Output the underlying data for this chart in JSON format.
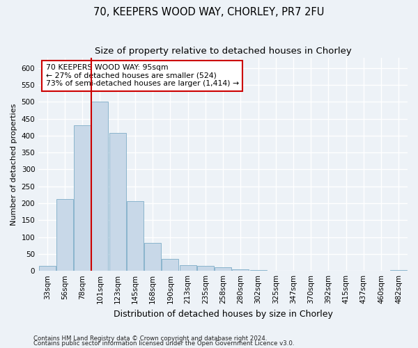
{
  "title1": "70, KEEPERS WOOD WAY, CHORLEY, PR7 2FU",
  "title2": "Size of property relative to detached houses in Chorley",
  "xlabel": "Distribution of detached houses by size in Chorley",
  "ylabel": "Number of detached properties",
  "footer1": "Contains HM Land Registry data © Crown copyright and database right 2024.",
  "footer2": "Contains public sector information licensed under the Open Government Licence v3.0.",
  "bar_labels": [
    "33sqm",
    "56sqm",
    "78sqm",
    "101sqm",
    "123sqm",
    "145sqm",
    "168sqm",
    "190sqm",
    "213sqm",
    "235sqm",
    "258sqm",
    "280sqm",
    "302sqm",
    "325sqm",
    "347sqm",
    "370sqm",
    "392sqm",
    "415sqm",
    "437sqm",
    "460sqm",
    "482sqm"
  ],
  "bar_values": [
    15,
    212,
    430,
    500,
    407,
    207,
    83,
    35,
    17,
    15,
    10,
    5,
    3,
    1,
    0,
    0,
    0,
    0,
    0,
    0,
    3
  ],
  "bar_color": "#c8d8e8",
  "bar_edge_color": "#8ab4cc",
  "highlight_line_color": "#cc0000",
  "highlight_line_xidx": 3,
  "annotation_text": "70 KEEPERS WOOD WAY: 95sqm\n← 27% of detached houses are smaller (524)\n73% of semi-detached houses are larger (1,414) →",
  "annotation_box_facecolor": "#ffffff",
  "annotation_box_edgecolor": "#cc0000",
  "ylim": [
    0,
    630
  ],
  "yticks": [
    0,
    50,
    100,
    150,
    200,
    250,
    300,
    350,
    400,
    450,
    500,
    550,
    600
  ],
  "background_color": "#edf2f7",
  "grid_color": "#ffffff",
  "title1_fontsize": 10.5,
  "title2_fontsize": 9.5,
  "ylabel_fontsize": 8,
  "xlabel_fontsize": 9,
  "tick_fontsize": 7.5,
  "footer_fontsize": 6.2
}
